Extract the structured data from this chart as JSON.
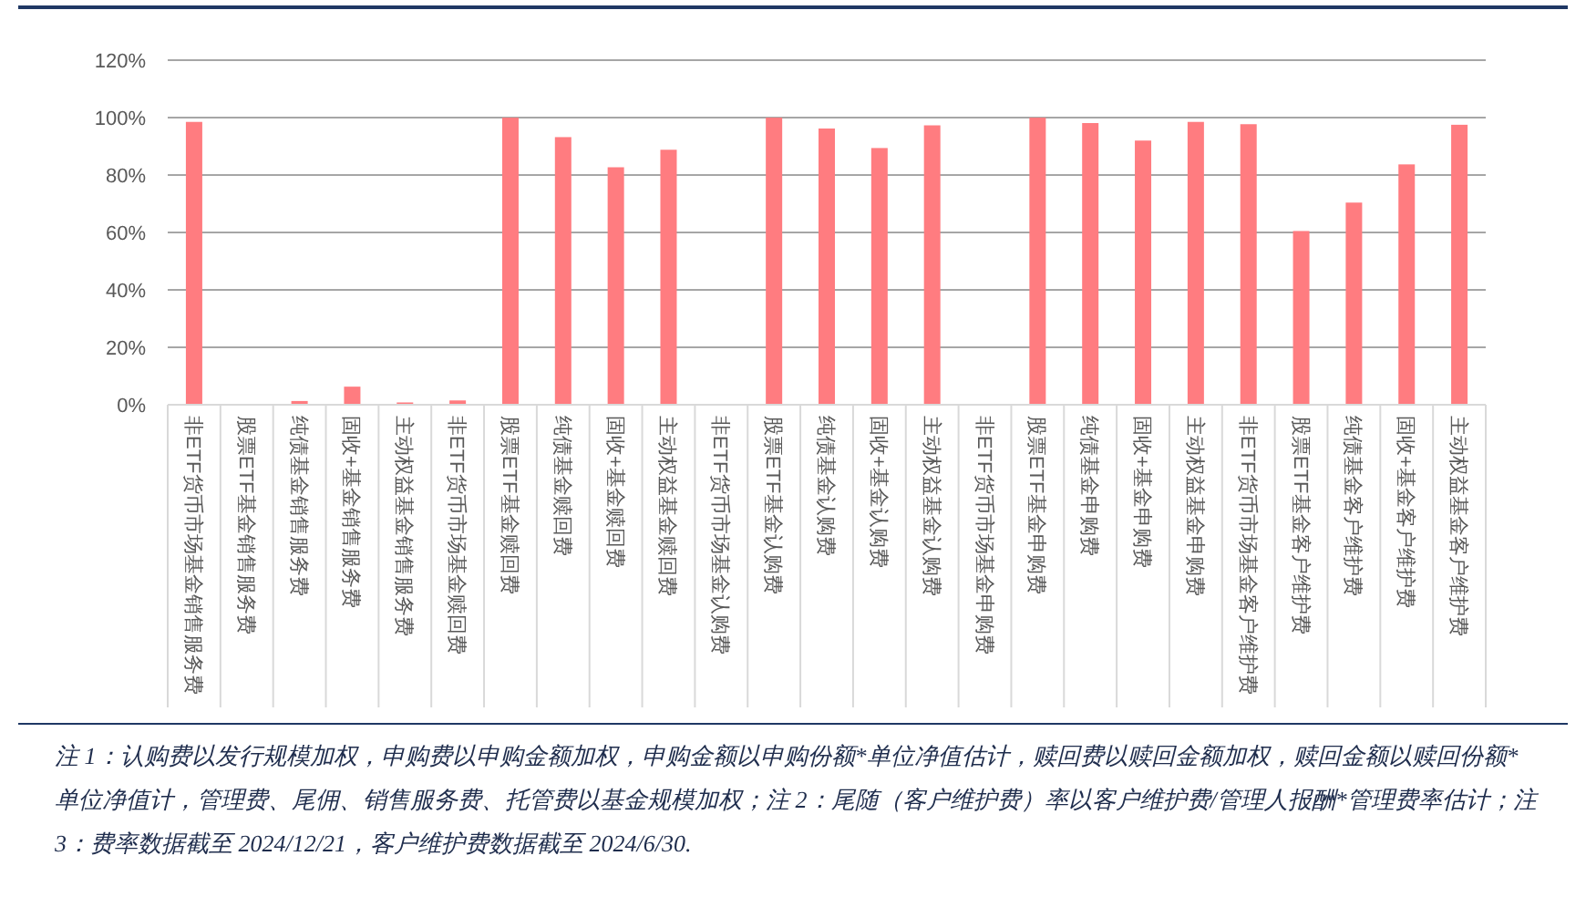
{
  "chart_data": {
    "type": "bar",
    "categories": [
      "非ETF货币市场基金销售服务费",
      "股票ETF基金销售服务费",
      "纯债基金销售服务费",
      "固收+基金销售服务费",
      "主动权益基金销售服务费",
      "非ETF货币市场基金赎回费",
      "股票ETF基金赎回费",
      "纯债基金赎回费",
      "固收+基金赎回费",
      "主动权益基金赎回费",
      "非ETF货币市场基金认购费",
      "股票ETF基金认购费",
      "纯债基金认购费",
      "固收+基金认购费",
      "主动权益基金认购费",
      "非ETF货币市场基金申购费",
      "股票ETF基金申购费",
      "纯债基金申购费",
      "固收+基金申购费",
      "主动权益基金申购费",
      "非ETF货币市场基金客户维护费",
      "股票ETF基金客户维护费",
      "纯债基金客户维护费",
      "固收+基金客户维护费",
      "主动权益基金客户维护费"
    ],
    "values": [
      98.5,
      0,
      1.3,
      6.3,
      0.8,
      1.5,
      100,
      93.2,
      82.7,
      88.8,
      0,
      100,
      96.2,
      89.4,
      97.3,
      0,
      100,
      98.1,
      92.0,
      98.5,
      97.7,
      60.5,
      70.4,
      83.7,
      97.5
    ],
    "color": "#ff7c80",
    "ylim": [
      0,
      120
    ],
    "yticks": [
      {
        "value": 0,
        "label": "0%"
      },
      {
        "value": 20,
        "label": "20%"
      },
      {
        "value": 40,
        "label": "40%"
      },
      {
        "value": 60,
        "label": "60%"
      },
      {
        "value": 80,
        "label": "80%"
      },
      {
        "value": 100,
        "label": "100%"
      },
      {
        "value": 120,
        "label": "120%"
      }
    ],
    "grid": "y",
    "annotations": [
      "注 1：认购费以发行规模加权，申购费以申购金额加权，申购金额以申购份额*单位净值估计，赎回费以赎回金额加权，赎回金额以赎回份额*单位净值计，管理费、尾佣、销售服务费、托管费以基金规模加权；注 2：尾随（客户维护费）率以客户维护费/管理人报酬*管理费率估计；注 3：费率数据截至 2024/12/21，客户维护费数据截至 2024/6/30."
    ]
  }
}
